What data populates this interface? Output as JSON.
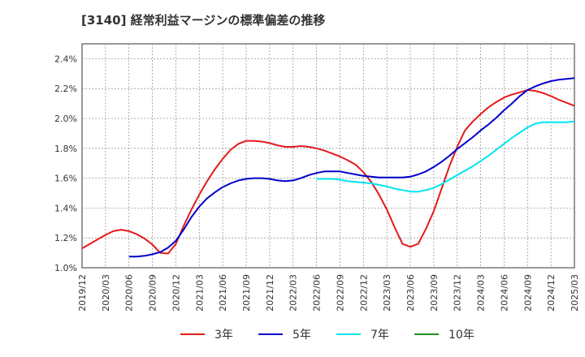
{
  "chart_data": {
    "type": "line",
    "title": "[3140]  経常利益マージンの標準偏差の推移",
    "xlabel": "",
    "ylabel": "",
    "ylim": [
      1.0,
      2.5
    ],
    "y_ticks": [
      "1.0%",
      "1.2%",
      "1.4%",
      "1.6%",
      "1.8%",
      "2.0%",
      "2.2%",
      "2.4%"
    ],
    "y_tick_values": [
      1.0,
      1.2,
      1.4,
      1.6,
      1.8,
      2.0,
      2.2,
      2.4
    ],
    "x_ticks": [
      "2019/12",
      "2020/03",
      "2020/06",
      "2020/09",
      "2020/12",
      "2021/03",
      "2021/06",
      "2021/09",
      "2021/12",
      "2022/03",
      "2022/06",
      "2022/09",
      "2022/12",
      "2023/03",
      "2023/06",
      "2023/09",
      "2023/12",
      "2024/03",
      "2024/06",
      "2024/09",
      "2024/12",
      "2025/03"
    ],
    "grid": true,
    "legend_placement": "bottom",
    "series": [
      {
        "name": "3年",
        "color": "#e31a1c",
        "points": [
          [
            "2019/12",
            1.13
          ],
          [
            "2020/01",
            1.16
          ],
          [
            "2020/02",
            1.19
          ],
          [
            "2020/03",
            1.22
          ],
          [
            "2020/04",
            1.245
          ],
          [
            "2020/05",
            1.255
          ],
          [
            "2020/06",
            1.245
          ],
          [
            "2020/07",
            1.225
          ],
          [
            "2020/08",
            1.195
          ],
          [
            "2020/09",
            1.155
          ],
          [
            "2020/10",
            1.1
          ],
          [
            "2020/11",
            1.095
          ],
          [
            "2020/12",
            1.16
          ],
          [
            "2021/01",
            1.28
          ],
          [
            "2021/02",
            1.39
          ],
          [
            "2021/03",
            1.49
          ],
          [
            "2021/04",
            1.58
          ],
          [
            "2021/05",
            1.66
          ],
          [
            "2021/06",
            1.73
          ],
          [
            "2021/07",
            1.79
          ],
          [
            "2021/08",
            1.83
          ],
          [
            "2021/09",
            1.85
          ],
          [
            "2021/10",
            1.85
          ],
          [
            "2021/11",
            1.845
          ],
          [
            "2021/12",
            1.835
          ],
          [
            "2022/01",
            1.82
          ],
          [
            "2022/02",
            1.81
          ],
          [
            "2022/03",
            1.81
          ],
          [
            "2022/04",
            1.815
          ],
          [
            "2022/05",
            1.81
          ],
          [
            "2022/06",
            1.8
          ],
          [
            "2022/07",
            1.785
          ],
          [
            "2022/08",
            1.765
          ],
          [
            "2022/09",
            1.745
          ],
          [
            "2022/10",
            1.72
          ],
          [
            "2022/11",
            1.69
          ],
          [
            "2022/12",
            1.64
          ],
          [
            "2023/01",
            1.575
          ],
          [
            "2023/02",
            1.49
          ],
          [
            "2023/03",
            1.39
          ],
          [
            "2023/04",
            1.27
          ],
          [
            "2023/05",
            1.16
          ],
          [
            "2023/06",
            1.14
          ],
          [
            "2023/07",
            1.16
          ],
          [
            "2023/08",
            1.26
          ],
          [
            "2023/09",
            1.38
          ],
          [
            "2023/10",
            1.53
          ],
          [
            "2023/11",
            1.68
          ],
          [
            "2023/12",
            1.81
          ],
          [
            "2024/01",
            1.92
          ],
          [
            "2024/02",
            1.98
          ],
          [
            "2024/03",
            2.03
          ],
          [
            "2024/04",
            2.075
          ],
          [
            "2024/05",
            2.11
          ],
          [
            "2024/06",
            2.14
          ],
          [
            "2024/07",
            2.16
          ],
          [
            "2024/08",
            2.175
          ],
          [
            "2024/09",
            2.19
          ],
          [
            "2024/10",
            2.185
          ],
          [
            "2024/11",
            2.17
          ],
          [
            "2024/12",
            2.15
          ],
          [
            "2025/01",
            2.125
          ],
          [
            "2025/02",
            2.105
          ],
          [
            "2025/03",
            2.085
          ]
        ]
      },
      {
        "name": "5年",
        "color": "#0000cc",
        "points": [
          [
            "2020/06",
            1.075
          ],
          [
            "2020/07",
            1.075
          ],
          [
            "2020/08",
            1.08
          ],
          [
            "2020/09",
            1.09
          ],
          [
            "2020/10",
            1.105
          ],
          [
            "2020/11",
            1.135
          ],
          [
            "2020/12",
            1.18
          ],
          [
            "2021/01",
            1.255
          ],
          [
            "2021/02",
            1.34
          ],
          [
            "2021/03",
            1.41
          ],
          [
            "2021/04",
            1.465
          ],
          [
            "2021/05",
            1.505
          ],
          [
            "2021/06",
            1.54
          ],
          [
            "2021/07",
            1.565
          ],
          [
            "2021/08",
            1.585
          ],
          [
            "2021/09",
            1.595
          ],
          [
            "2021/10",
            1.6
          ],
          [
            "2021/11",
            1.6
          ],
          [
            "2021/12",
            1.595
          ],
          [
            "2022/01",
            1.585
          ],
          [
            "2022/02",
            1.58
          ],
          [
            "2022/03",
            1.585
          ],
          [
            "2022/04",
            1.6
          ],
          [
            "2022/05",
            1.62
          ],
          [
            "2022/06",
            1.635
          ],
          [
            "2022/07",
            1.645
          ],
          [
            "2022/08",
            1.645
          ],
          [
            "2022/09",
            1.645
          ],
          [
            "2022/10",
            1.635
          ],
          [
            "2022/11",
            1.625
          ],
          [
            "2022/12",
            1.615
          ],
          [
            "2023/01",
            1.61
          ],
          [
            "2023/02",
            1.605
          ],
          [
            "2023/03",
            1.605
          ],
          [
            "2023/04",
            1.605
          ],
          [
            "2023/05",
            1.605
          ],
          [
            "2023/06",
            1.61
          ],
          [
            "2023/07",
            1.625
          ],
          [
            "2023/08",
            1.645
          ],
          [
            "2023/09",
            1.675
          ],
          [
            "2023/10",
            1.71
          ],
          [
            "2023/11",
            1.75
          ],
          [
            "2023/12",
            1.795
          ],
          [
            "2024/01",
            1.835
          ],
          [
            "2024/02",
            1.875
          ],
          [
            "2024/03",
            1.92
          ],
          [
            "2024/04",
            1.96
          ],
          [
            "2024/05",
            2.005
          ],
          [
            "2024/06",
            2.055
          ],
          [
            "2024/07",
            2.1
          ],
          [
            "2024/08",
            2.15
          ],
          [
            "2024/09",
            2.19
          ],
          [
            "2024/10",
            2.215
          ],
          [
            "2024/11",
            2.235
          ],
          [
            "2024/12",
            2.25
          ],
          [
            "2025/01",
            2.26
          ],
          [
            "2025/02",
            2.265
          ],
          [
            "2025/03",
            2.27
          ]
        ]
      },
      {
        "name": "7年",
        "color": "#00e5ee",
        "points": [
          [
            "2022/06",
            1.595
          ],
          [
            "2022/07",
            1.595
          ],
          [
            "2022/08",
            1.595
          ],
          [
            "2022/09",
            1.59
          ],
          [
            "2022/10",
            1.58
          ],
          [
            "2022/11",
            1.575
          ],
          [
            "2022/12",
            1.57
          ],
          [
            "2023/01",
            1.565
          ],
          [
            "2023/02",
            1.555
          ],
          [
            "2023/03",
            1.545
          ],
          [
            "2023/04",
            1.53
          ],
          [
            "2023/05",
            1.52
          ],
          [
            "2023/06",
            1.51
          ],
          [
            "2023/07",
            1.51
          ],
          [
            "2023/08",
            1.52
          ],
          [
            "2023/09",
            1.535
          ],
          [
            "2023/10",
            1.56
          ],
          [
            "2023/11",
            1.59
          ],
          [
            "2023/12",
            1.62
          ],
          [
            "2024/01",
            1.65
          ],
          [
            "2024/02",
            1.68
          ],
          [
            "2024/03",
            1.715
          ],
          [
            "2024/04",
            1.75
          ],
          [
            "2024/05",
            1.79
          ],
          [
            "2024/06",
            1.83
          ],
          [
            "2024/07",
            1.87
          ],
          [
            "2024/08",
            1.905
          ],
          [
            "2024/09",
            1.94
          ],
          [
            "2024/10",
            1.965
          ],
          [
            "2024/11",
            1.975
          ],
          [
            "2024/12",
            1.975
          ],
          [
            "2025/01",
            1.975
          ],
          [
            "2025/02",
            1.975
          ],
          [
            "2025/03",
            1.98
          ]
        ]
      },
      {
        "name": "10年",
        "color": "#228b22",
        "points": []
      }
    ]
  }
}
